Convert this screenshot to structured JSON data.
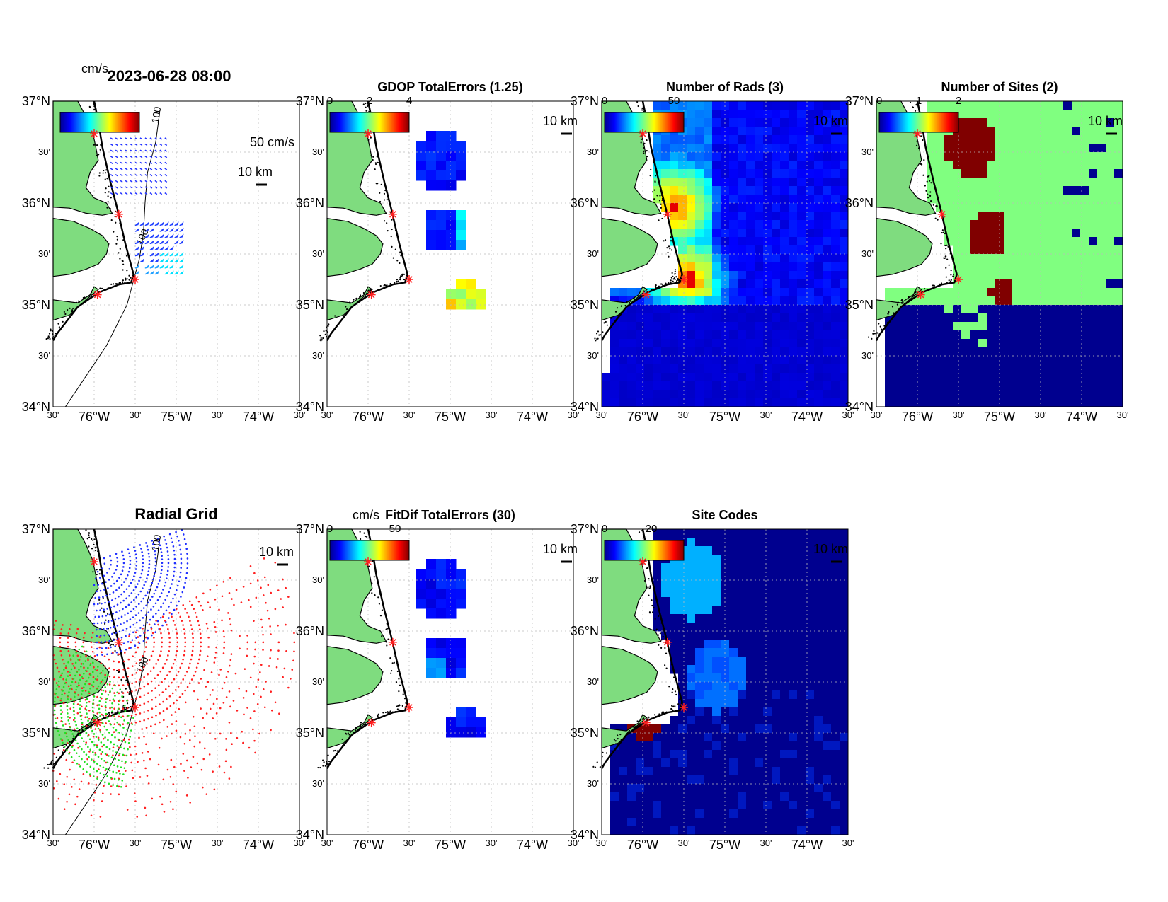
{
  "panels": [
    {
      "id": "currents",
      "title": "2023-06-28 08:00",
      "colorbar_unit": "cm/s",
      "colorbar_ticks": [],
      "scale_arrow_label": "50 cm/s",
      "scale_km": "10 km",
      "contour_labels": [
        "100",
        "100"
      ]
    },
    {
      "id": "gdop",
      "title": "GDOP TotalErrors (1.25)",
      "colorbar_unit": "",
      "colorbar_ticks": [
        "0",
        "2",
        "4"
      ],
      "scale_km": "10 km"
    },
    {
      "id": "nrads",
      "title": "Number of Rads (3)",
      "colorbar_unit": "",
      "colorbar_ticks": [
        "0",
        "50"
      ],
      "scale_km": "10 km"
    },
    {
      "id": "nsites",
      "title": "Number of Sites (2)",
      "colorbar_unit": "",
      "colorbar_ticks": [
        "0",
        "1",
        "2"
      ],
      "scale_km": "10 km"
    },
    {
      "id": "radgrid",
      "title": "Radial Grid",
      "colorbar_unit": "",
      "colorbar_ticks": [],
      "scale_km": "10 km",
      "contour_labels": [
        "100",
        "100"
      ]
    },
    {
      "id": "fitdif",
      "title": "FitDif TotalErrors (30)",
      "colorbar_unit": "cm/s",
      "colorbar_ticks": [
        "0",
        "50"
      ],
      "scale_km": "10 km"
    },
    {
      "id": "sitecodes",
      "title": "Site Codes",
      "colorbar_unit": "",
      "colorbar_ticks": [
        "0",
        "20"
      ],
      "scale_km": "10 km"
    }
  ],
  "axes": {
    "lat_labels": [
      "37°N",
      "30'",
      "36°N",
      "30'",
      "35°N",
      "30'",
      "34°N"
    ],
    "lon_labels": [
      "30'",
      "76°W",
      "30'",
      "75°W",
      "30'",
      "74°W",
      "30'"
    ]
  },
  "map_extent": {
    "lon": [
      -76.5,
      -73.5
    ],
    "lat": [
      34,
      37
    ]
  },
  "sites": [
    {
      "lon": -76.0,
      "lat": 36.68
    },
    {
      "lon": -75.7,
      "lat": 35.89
    },
    {
      "lon": -75.5,
      "lat": 35.25
    },
    {
      "lon": -75.96,
      "lat": 35.1
    }
  ],
  "colors": {
    "land": "#7fdc7f",
    "coast": "#000000",
    "site": "#ff2020",
    "grid": "#bbbbbb",
    "radial_blue": "#2030ff",
    "radial_red": "#ff2020",
    "radial_green": "#20e020",
    "jet_low": "#00008f",
    "sites_one": "#80ff80",
    "sites_two": "#800000"
  }
}
